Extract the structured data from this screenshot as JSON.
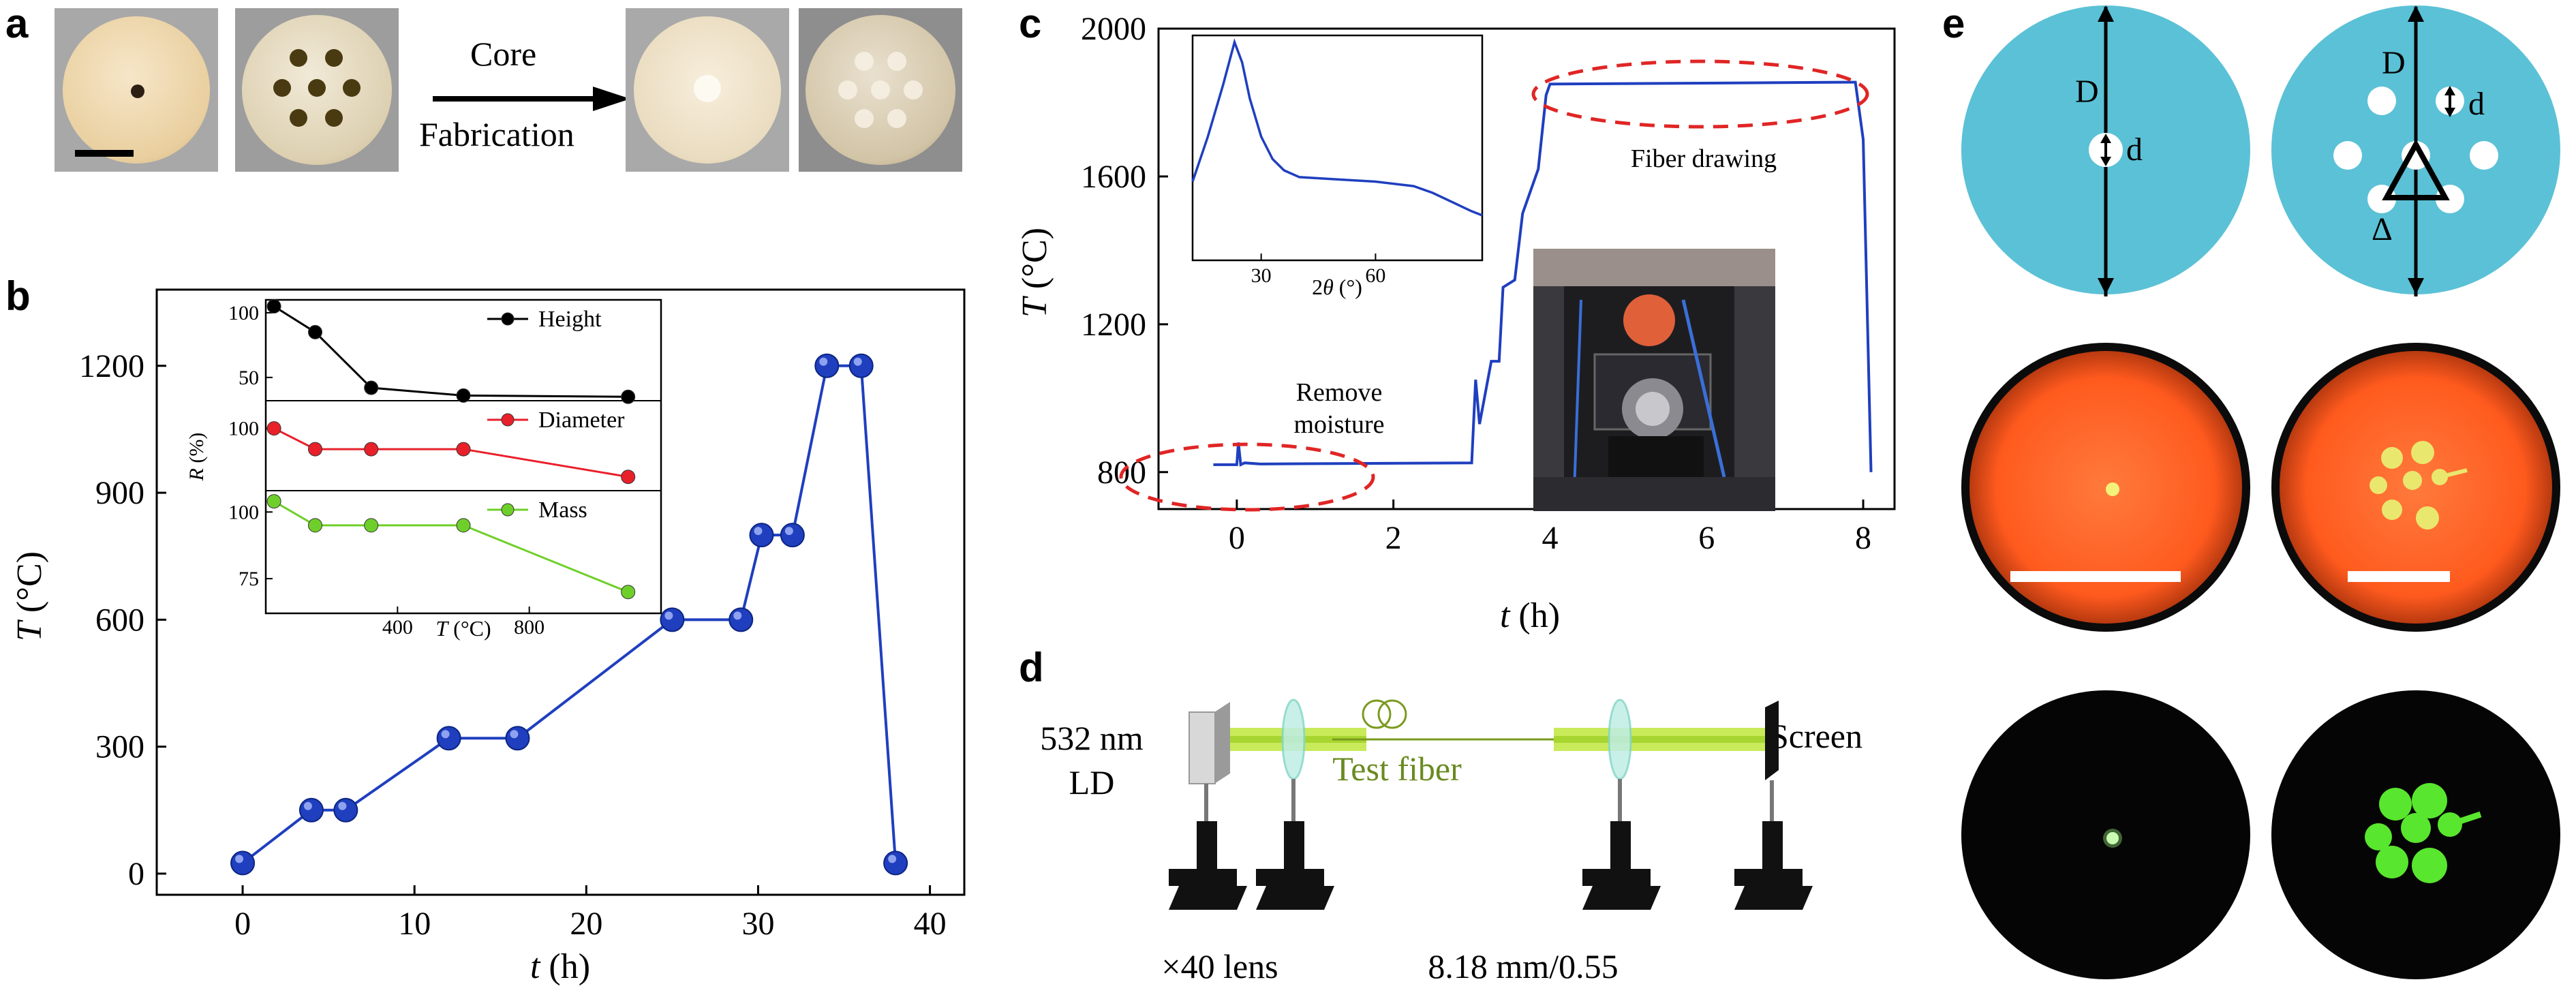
{
  "panel_labels": {
    "a": "a",
    "b": "b",
    "c": "c",
    "d": "d",
    "e": "e"
  },
  "panel_a": {
    "arrow_label_top": "Core",
    "arrow_label_bottom": "Fabrication"
  },
  "panel_c": {
    "annotation_remove": [
      "Remove",
      "moisture"
    ],
    "annotation_drawing": "Fiber drawing"
  },
  "panel_d": {
    "source_label": [
      "532 nm",
      "LD"
    ],
    "fiber_label": "Test fiber",
    "screen_label": "Screen",
    "lens_left_label": "×40 lens",
    "lens_right_label": "8.18 mm/0.55",
    "colors": {
      "beam": "#b6e03a",
      "fiber": "#7a9a1e",
      "fiber_text": "#6a8a20"
    }
  },
  "panel_e": {
    "single_labels": {
      "D": "D",
      "d": "d"
    },
    "multi_labels": {
      "D": "D",
      "d": "d",
      "delta": "Δ"
    },
    "colors": {
      "disk": "#5bc1d6",
      "red_glow": "#ff5a1e",
      "green_glow": "#59e62e"
    }
  },
  "chart_data": [
    {
      "id": "b-main",
      "type": "line",
      "xlabel": "t (h)",
      "ylabel": "T (°C)",
      "xlim": [
        -5,
        42
      ],
      "ylim": [
        -50,
        1380
      ],
      "xticks": [
        0,
        10,
        20,
        30,
        40
      ],
      "yticks": [
        0,
        300,
        600,
        900,
        1200
      ],
      "series": [
        {
          "x": [
            0,
            4,
            6,
            12,
            16,
            25,
            29,
            30.2,
            32,
            34,
            36,
            38
          ],
          "y": [
            25,
            150,
            150,
            320,
            320,
            600,
            600,
            800,
            800,
            1200,
            1200,
            25
          ],
          "color": "#1f3fbf"
        }
      ],
      "grid": false
    },
    {
      "id": "b-inset",
      "type": "line",
      "xlabel": "T (°C)",
      "ylabel": "R (%)",
      "xlim": [
        0,
        1200
      ],
      "xticks": [
        400,
        800
      ],
      "subplots": [
        {
          "name": "Height",
          "color": "#000000",
          "ylim": [
            32,
            110
          ],
          "yticks": [
            50,
            100
          ],
          "x": [
            25,
            150,
            320,
            600,
            1100
          ],
          "y": [
            105,
            85,
            42,
            36,
            35
          ]
        },
        {
          "name": "Diameter",
          "color": "#e8202a",
          "ylim": [
            82,
            108
          ],
          "yticks": [
            100
          ],
          "x": [
            25,
            150,
            320,
            600,
            1100
          ],
          "y": [
            100,
            94,
            94,
            94,
            86
          ]
        },
        {
          "name": "Mass",
          "color": "#6fcf2a",
          "ylim": [
            62,
            108
          ],
          "yticks": [
            75,
            100
          ],
          "x": [
            25,
            150,
            320,
            600,
            1100
          ],
          "y": [
            104,
            95,
            95,
            95,
            70
          ]
        }
      ],
      "legend": "right"
    },
    {
      "id": "c-main",
      "type": "line",
      "xlabel": "t (h)",
      "ylabel": "T (°C)",
      "xlim": [
        -1,
        8.4
      ],
      "ylim": [
        700,
        2000
      ],
      "xticks": [
        0,
        2,
        4,
        6,
        8
      ],
      "yticks": [
        800,
        1200,
        1600,
        2000
      ],
      "series": [
        {
          "x": [
            -0.3,
            0.0,
            0.02,
            0.05,
            0.1,
            0.3,
            3.0,
            3.05,
            3.1,
            3.25,
            3.35,
            3.4,
            3.55,
            3.65,
            3.75,
            3.85,
            3.95,
            4.0,
            7.8,
            7.9,
            8.0,
            8.1
          ],
          "y": [
            820,
            820,
            880,
            820,
            825,
            822,
            825,
            1050,
            930,
            1100,
            1100,
            1300,
            1320,
            1500,
            1560,
            1620,
            1820,
            1850,
            1855,
            1855,
            1700,
            800
          ],
          "color": "#1f3fbf"
        }
      ],
      "grid": false
    },
    {
      "id": "c-inset",
      "type": "line",
      "xlabel": "2θ (°)",
      "xlim": [
        12,
        88
      ],
      "xticks": [
        30,
        60
      ],
      "series": [
        {
          "x": [
            12,
            16,
            20,
            23,
            25,
            27,
            30,
            33,
            36,
            40,
            50,
            60,
            70,
            75,
            80,
            85,
            88
          ],
          "y": [
            0.35,
            0.55,
            0.78,
            0.97,
            0.88,
            0.72,
            0.55,
            0.45,
            0.4,
            0.37,
            0.36,
            0.35,
            0.33,
            0.3,
            0.26,
            0.22,
            0.2
          ],
          "color": "#1f3fbf"
        }
      ]
    }
  ]
}
